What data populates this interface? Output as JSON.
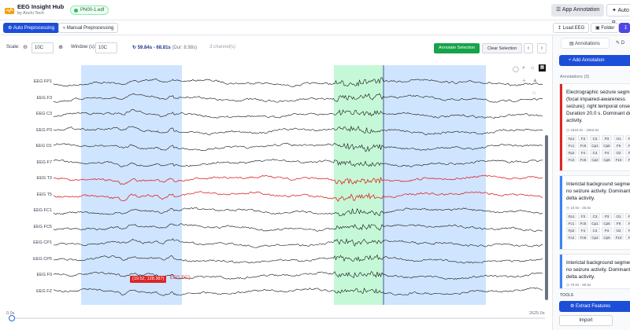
{
  "header": {
    "title": "EEG Insight Hub",
    "subtitle": "by Anchi Tech",
    "file_badge": "PN00-1.edf",
    "app_annotation": "App Annotation",
    "auto_truncated": "Auto P"
  },
  "toolbar": {
    "auto_preprocessing": "Auto Preprocessing",
    "manual_preprocessing": "Manual Preprocessing",
    "load_eeg": "Load EEG",
    "folder": "Folder"
  },
  "controls": {
    "scale_label": "Scale:",
    "scale_value": "10C",
    "window_label": "Window (s):",
    "window_value": "10C",
    "range": "59.84s - 68.81s",
    "duration": "(Dur: 8.98s)",
    "channels": "3 channel(s)",
    "annotate_selection": "Annotate Selection",
    "clear_selection": "Clear Selection"
  },
  "channels": [
    "EEG FP1",
    "EEG F3",
    "EEG C3",
    "EEG P3",
    "EEG O1",
    "EEG F7",
    "EEG T3",
    "EEG T5",
    "EEG FC1",
    "EEG FC5",
    "EEG CP1",
    "EEG CP5",
    "EEG F9",
    "EEG FZ"
  ],
  "highlighted_channels": [
    "EEG T3",
    "EEG T5"
  ],
  "tooltip": {
    "value": "(19.52, 128.387)",
    "channel": "EEG FC1"
  },
  "timeline": {
    "start": "0.0s",
    "end": "2625.0s"
  },
  "panel": {
    "tab_annotations": "Annotations",
    "tab_other": "D",
    "add_annotation": "+ Add Annotation",
    "count_label": "Annotations (3)",
    "tools_label": "TOOLS",
    "extract_features": "Extract Features",
    "import": "Import",
    "annotations": [
      {
        "text": "Electrographic seizure segment (focal impaired-awareness seizure); right temporal onset. Duration 20.0 s. Dominant delta activity.",
        "time": "1543.0s - 1563.0s",
        "color": "#dc2626",
        "chips": [
          "Fp1",
          "F3",
          "C3",
          "P3",
          "O1",
          "F7",
          "Fc1",
          "Fc5",
          "Cp1",
          "Cp5",
          "F9",
          "Fz",
          "Fp2",
          "F4",
          "C4",
          "P4",
          "O2",
          "F8",
          "Fc2",
          "Fc6",
          "Cp2",
          "Cp6",
          "F10",
          "Pz"
        ]
      },
      {
        "text": "Interictal background segment; no seizure activity. Dominant delta activity.",
        "time": "10.0s - 30.0s",
        "color": "#3b82f6",
        "chips": [
          "Fp1",
          "F3",
          "C3",
          "P3",
          "O1",
          "F7",
          "Fc1",
          "Fc5",
          "Cp1",
          "Cp5",
          "F9",
          "Fz",
          "Fp2",
          "F4",
          "C4",
          "P4",
          "O2",
          "F8",
          "Fc2",
          "Fc6",
          "Cp2",
          "Cp6",
          "F10",
          "Pz"
        ]
      },
      {
        "text": "Interictal background segment; no seizure activity. Dominant delta activity.",
        "time": "70.0s - 90.0s",
        "color": "#3b82f6",
        "chips": []
      }
    ]
  },
  "colors": {
    "primary": "#1d4ed8",
    "seizure": "#dc2626",
    "selection_blue": "#bfdbfe",
    "selection_green": "#bbf7d0"
  }
}
